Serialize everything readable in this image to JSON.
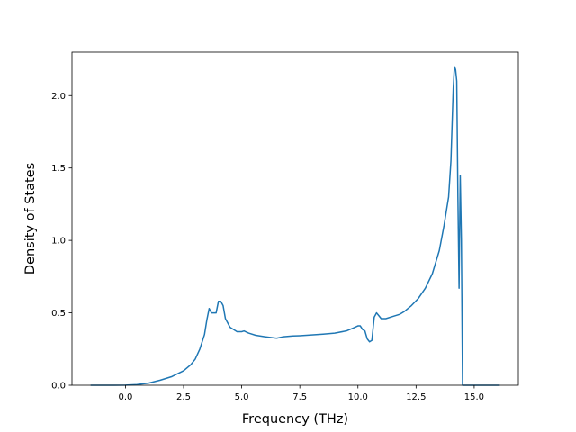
{
  "chart_data": {
    "type": "line",
    "title": "",
    "xlabel": "Frequency (THz)",
    "ylabel": "Density of States",
    "xlim": [
      -2.3,
      16.9
    ],
    "ylim": [
      0.0,
      2.3
    ],
    "grid": false,
    "legend": "none",
    "line_color": "#1f77b4",
    "xticks": [
      {
        "value": 0.0,
        "label": "0.0"
      },
      {
        "value": 2.5,
        "label": "2.5"
      },
      {
        "value": 5.0,
        "label": "5.0"
      },
      {
        "value": 7.5,
        "label": "7.5"
      },
      {
        "value": 10.0,
        "label": "10.0"
      },
      {
        "value": 12.5,
        "label": "12.5"
      },
      {
        "value": 15.0,
        "label": "15.0"
      }
    ],
    "yticks": [
      {
        "value": 0.0,
        "label": "0.0"
      },
      {
        "value": 0.5,
        "label": "0.5"
      },
      {
        "value": 1.0,
        "label": "1.0"
      },
      {
        "value": 1.5,
        "label": "1.5"
      },
      {
        "value": 2.0,
        "label": "2.0"
      }
    ],
    "series": [
      {
        "x": [
          -1.5,
          -0.5,
          0.0,
          0.5,
          1.0,
          1.5,
          2.0,
          2.5,
          2.8,
          3.0,
          3.2,
          3.4,
          3.5,
          3.6,
          3.7,
          3.8,
          3.9,
          4.0,
          4.1,
          4.2,
          4.3,
          4.5,
          4.8,
          5.0,
          5.1,
          5.3,
          5.6,
          6.0,
          6.5,
          6.8,
          7.2,
          7.5,
          8.0,
          8.5,
          9.0,
          9.5,
          9.8,
          10.0,
          10.1,
          10.2,
          10.3,
          10.4,
          10.5,
          10.6,
          10.7,
          10.8,
          10.9,
          11.0,
          11.2,
          11.5,
          11.8,
          12.0,
          12.3,
          12.6,
          12.9,
          13.2,
          13.5,
          13.7,
          13.9,
          14.0,
          14.1,
          14.15,
          14.2,
          14.25,
          14.3,
          14.35,
          14.4,
          14.45,
          14.5,
          14.55,
          14.6,
          14.65,
          14.7,
          14.8,
          15.0,
          15.5,
          16.1
        ],
        "y": [
          0.0,
          0.0,
          0.001,
          0.005,
          0.015,
          0.035,
          0.06,
          0.1,
          0.14,
          0.18,
          0.25,
          0.35,
          0.45,
          0.53,
          0.5,
          0.5,
          0.5,
          0.58,
          0.58,
          0.55,
          0.46,
          0.4,
          0.37,
          0.37,
          0.375,
          0.36,
          0.345,
          0.335,
          0.325,
          0.335,
          0.34,
          0.342,
          0.347,
          0.353,
          0.36,
          0.375,
          0.395,
          0.41,
          0.41,
          0.385,
          0.375,
          0.32,
          0.3,
          0.31,
          0.47,
          0.5,
          0.48,
          0.46,
          0.46,
          0.475,
          0.49,
          0.51,
          0.55,
          0.6,
          0.67,
          0.77,
          0.93,
          1.1,
          1.3,
          1.55,
          2.05,
          2.2,
          2.18,
          2.1,
          1.3,
          0.67,
          1.45,
          1.0,
          0.0,
          0.0,
          0.0,
          0.0,
          0.0,
          0.0,
          0.0,
          0.0,
          0.0
        ]
      }
    ]
  }
}
